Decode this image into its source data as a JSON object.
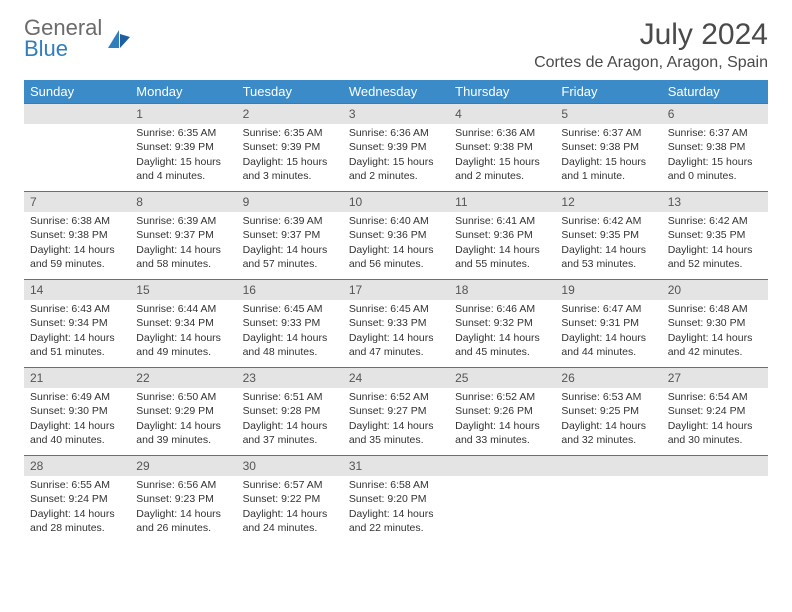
{
  "brand": {
    "line1": "General",
    "line2": "Blue"
  },
  "title": "July 2024",
  "location": "Cortes de Aragon, Aragon, Spain",
  "colors": {
    "header_bg": "#3b8bc9",
    "header_text": "#ffffff",
    "daynum_bg": "#e4e4e4",
    "rule": "#2f7fbf",
    "body_text": "#333333",
    "logo_gray": "#6b6b6b",
    "logo_blue": "#2f7fbf"
  },
  "day_headers": [
    "Sunday",
    "Monday",
    "Tuesday",
    "Wednesday",
    "Thursday",
    "Friday",
    "Saturday"
  ],
  "weeks": [
    [
      {
        "n": "",
        "lines": []
      },
      {
        "n": "1",
        "lines": [
          "Sunrise: 6:35 AM",
          "Sunset: 9:39 PM",
          "Daylight: 15 hours",
          "and 4 minutes."
        ]
      },
      {
        "n": "2",
        "lines": [
          "Sunrise: 6:35 AM",
          "Sunset: 9:39 PM",
          "Daylight: 15 hours",
          "and 3 minutes."
        ]
      },
      {
        "n": "3",
        "lines": [
          "Sunrise: 6:36 AM",
          "Sunset: 9:39 PM",
          "Daylight: 15 hours",
          "and 2 minutes."
        ]
      },
      {
        "n": "4",
        "lines": [
          "Sunrise: 6:36 AM",
          "Sunset: 9:38 PM",
          "Daylight: 15 hours",
          "and 2 minutes."
        ]
      },
      {
        "n": "5",
        "lines": [
          "Sunrise: 6:37 AM",
          "Sunset: 9:38 PM",
          "Daylight: 15 hours",
          "and 1 minute."
        ]
      },
      {
        "n": "6",
        "lines": [
          "Sunrise: 6:37 AM",
          "Sunset: 9:38 PM",
          "Daylight: 15 hours",
          "and 0 minutes."
        ]
      }
    ],
    [
      {
        "n": "7",
        "lines": [
          "Sunrise: 6:38 AM",
          "Sunset: 9:38 PM",
          "Daylight: 14 hours",
          "and 59 minutes."
        ]
      },
      {
        "n": "8",
        "lines": [
          "Sunrise: 6:39 AM",
          "Sunset: 9:37 PM",
          "Daylight: 14 hours",
          "and 58 minutes."
        ]
      },
      {
        "n": "9",
        "lines": [
          "Sunrise: 6:39 AM",
          "Sunset: 9:37 PM",
          "Daylight: 14 hours",
          "and 57 minutes."
        ]
      },
      {
        "n": "10",
        "lines": [
          "Sunrise: 6:40 AM",
          "Sunset: 9:36 PM",
          "Daylight: 14 hours",
          "and 56 minutes."
        ]
      },
      {
        "n": "11",
        "lines": [
          "Sunrise: 6:41 AM",
          "Sunset: 9:36 PM",
          "Daylight: 14 hours",
          "and 55 minutes."
        ]
      },
      {
        "n": "12",
        "lines": [
          "Sunrise: 6:42 AM",
          "Sunset: 9:35 PM",
          "Daylight: 14 hours",
          "and 53 minutes."
        ]
      },
      {
        "n": "13",
        "lines": [
          "Sunrise: 6:42 AM",
          "Sunset: 9:35 PM",
          "Daylight: 14 hours",
          "and 52 minutes."
        ]
      }
    ],
    [
      {
        "n": "14",
        "lines": [
          "Sunrise: 6:43 AM",
          "Sunset: 9:34 PM",
          "Daylight: 14 hours",
          "and 51 minutes."
        ]
      },
      {
        "n": "15",
        "lines": [
          "Sunrise: 6:44 AM",
          "Sunset: 9:34 PM",
          "Daylight: 14 hours",
          "and 49 minutes."
        ]
      },
      {
        "n": "16",
        "lines": [
          "Sunrise: 6:45 AM",
          "Sunset: 9:33 PM",
          "Daylight: 14 hours",
          "and 48 minutes."
        ]
      },
      {
        "n": "17",
        "lines": [
          "Sunrise: 6:45 AM",
          "Sunset: 9:33 PM",
          "Daylight: 14 hours",
          "and 47 minutes."
        ]
      },
      {
        "n": "18",
        "lines": [
          "Sunrise: 6:46 AM",
          "Sunset: 9:32 PM",
          "Daylight: 14 hours",
          "and 45 minutes."
        ]
      },
      {
        "n": "19",
        "lines": [
          "Sunrise: 6:47 AM",
          "Sunset: 9:31 PM",
          "Daylight: 14 hours",
          "and 44 minutes."
        ]
      },
      {
        "n": "20",
        "lines": [
          "Sunrise: 6:48 AM",
          "Sunset: 9:30 PM",
          "Daylight: 14 hours",
          "and 42 minutes."
        ]
      }
    ],
    [
      {
        "n": "21",
        "lines": [
          "Sunrise: 6:49 AM",
          "Sunset: 9:30 PM",
          "Daylight: 14 hours",
          "and 40 minutes."
        ]
      },
      {
        "n": "22",
        "lines": [
          "Sunrise: 6:50 AM",
          "Sunset: 9:29 PM",
          "Daylight: 14 hours",
          "and 39 minutes."
        ]
      },
      {
        "n": "23",
        "lines": [
          "Sunrise: 6:51 AM",
          "Sunset: 9:28 PM",
          "Daylight: 14 hours",
          "and 37 minutes."
        ]
      },
      {
        "n": "24",
        "lines": [
          "Sunrise: 6:52 AM",
          "Sunset: 9:27 PM",
          "Daylight: 14 hours",
          "and 35 minutes."
        ]
      },
      {
        "n": "25",
        "lines": [
          "Sunrise: 6:52 AM",
          "Sunset: 9:26 PM",
          "Daylight: 14 hours",
          "and 33 minutes."
        ]
      },
      {
        "n": "26",
        "lines": [
          "Sunrise: 6:53 AM",
          "Sunset: 9:25 PM",
          "Daylight: 14 hours",
          "and 32 minutes."
        ]
      },
      {
        "n": "27",
        "lines": [
          "Sunrise: 6:54 AM",
          "Sunset: 9:24 PM",
          "Daylight: 14 hours",
          "and 30 minutes."
        ]
      }
    ],
    [
      {
        "n": "28",
        "lines": [
          "Sunrise: 6:55 AM",
          "Sunset: 9:24 PM",
          "Daylight: 14 hours",
          "and 28 minutes."
        ]
      },
      {
        "n": "29",
        "lines": [
          "Sunrise: 6:56 AM",
          "Sunset: 9:23 PM",
          "Daylight: 14 hours",
          "and 26 minutes."
        ]
      },
      {
        "n": "30",
        "lines": [
          "Sunrise: 6:57 AM",
          "Sunset: 9:22 PM",
          "Daylight: 14 hours",
          "and 24 minutes."
        ]
      },
      {
        "n": "31",
        "lines": [
          "Sunrise: 6:58 AM",
          "Sunset: 9:20 PM",
          "Daylight: 14 hours",
          "and 22 minutes."
        ]
      },
      {
        "n": "",
        "lines": []
      },
      {
        "n": "",
        "lines": []
      },
      {
        "n": "",
        "lines": []
      }
    ]
  ]
}
